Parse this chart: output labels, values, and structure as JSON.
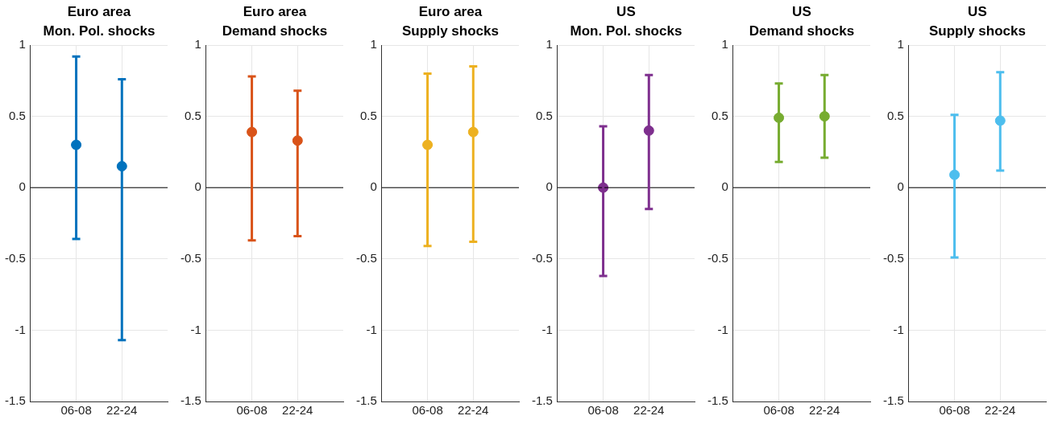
{
  "chart_data": [
    {
      "type": "scatter",
      "title": "Euro area",
      "subtitle": "Mon. Pol. shocks",
      "categories": [
        "06-08",
        "22-24"
      ],
      "values": [
        0.3,
        0.15
      ],
      "errors": [
        [
          -0.36,
          0.92
        ],
        [
          -1.07,
          0.76
        ]
      ],
      "color": "#0072bd",
      "ylim": [
        -1.5,
        1
      ],
      "yticks": [
        -1.5,
        -1,
        -0.5,
        0,
        0.5,
        1
      ],
      "grid": true,
      "legend": false,
      "marker": "circle",
      "ref_lines": [
        {
          "axis": "y",
          "value": 0,
          "color": "#000000"
        }
      ]
    },
    {
      "type": "scatter",
      "title": "Euro area",
      "subtitle": "Demand shocks",
      "categories": [
        "06-08",
        "22-24"
      ],
      "values": [
        0.39,
        0.33
      ],
      "errors": [
        [
          -0.37,
          0.78
        ],
        [
          -0.34,
          0.68
        ]
      ],
      "color": "#d95319",
      "ylim": [
        -1.5,
        1
      ],
      "yticks": [
        -1.5,
        -1,
        -0.5,
        0,
        0.5,
        1
      ],
      "grid": true,
      "legend": false,
      "marker": "circle",
      "ref_lines": [
        {
          "axis": "y",
          "value": 0,
          "color": "#000000"
        }
      ]
    },
    {
      "type": "scatter",
      "title": "Euro area",
      "subtitle": "Supply shocks",
      "categories": [
        "06-08",
        "22-24"
      ],
      "values": [
        0.3,
        0.39
      ],
      "errors": [
        [
          -0.41,
          0.8
        ],
        [
          -0.38,
          0.85
        ]
      ],
      "color": "#edb120",
      "ylim": [
        -1.5,
        1
      ],
      "yticks": [
        -1.5,
        -1,
        -0.5,
        0,
        0.5,
        1
      ],
      "grid": true,
      "legend": false,
      "marker": "circle",
      "ref_lines": [
        {
          "axis": "y",
          "value": 0,
          "color": "#000000"
        }
      ]
    },
    {
      "type": "scatter",
      "title": "US",
      "subtitle": "Mon. Pol. shocks",
      "categories": [
        "06-08",
        "22-24"
      ],
      "values": [
        0.0,
        0.4
      ],
      "errors": [
        [
          -0.62,
          0.43
        ],
        [
          -0.15,
          0.79
        ]
      ],
      "color": "#7e2f8e",
      "ylim": [
        -1.5,
        1
      ],
      "yticks": [
        -1.5,
        -1,
        -0.5,
        0,
        0.5,
        1
      ],
      "grid": true,
      "legend": false,
      "marker": "circle",
      "ref_lines": [
        {
          "axis": "y",
          "value": 0,
          "color": "#000000"
        }
      ]
    },
    {
      "type": "scatter",
      "title": "US",
      "subtitle": "Demand shocks",
      "categories": [
        "06-08",
        "22-24"
      ],
      "values": [
        0.49,
        0.5
      ],
      "errors": [
        [
          0.18,
          0.73
        ],
        [
          0.21,
          0.79
        ]
      ],
      "color": "#77ac30",
      "ylim": [
        -1.5,
        1
      ],
      "yticks": [
        -1.5,
        -1,
        -0.5,
        0,
        0.5,
        1
      ],
      "grid": true,
      "legend": false,
      "marker": "circle",
      "ref_lines": [
        {
          "axis": "y",
          "value": 0,
          "color": "#000000"
        }
      ]
    },
    {
      "type": "scatter",
      "title": "US",
      "subtitle": "Supply shocks",
      "categories": [
        "06-08",
        "22-24"
      ],
      "values": [
        0.09,
        0.47
      ],
      "errors": [
        [
          -0.49,
          0.51
        ],
        [
          0.12,
          0.81
        ]
      ],
      "color": "#4dbeee",
      "ylim": [
        -1.5,
        1
      ],
      "yticks": [
        -1.5,
        -1,
        -0.5,
        0,
        0.5,
        1
      ],
      "grid": true,
      "legend": false,
      "marker": "circle",
      "ref_lines": [
        {
          "axis": "y",
          "value": 0,
          "color": "#000000"
        }
      ]
    }
  ]
}
